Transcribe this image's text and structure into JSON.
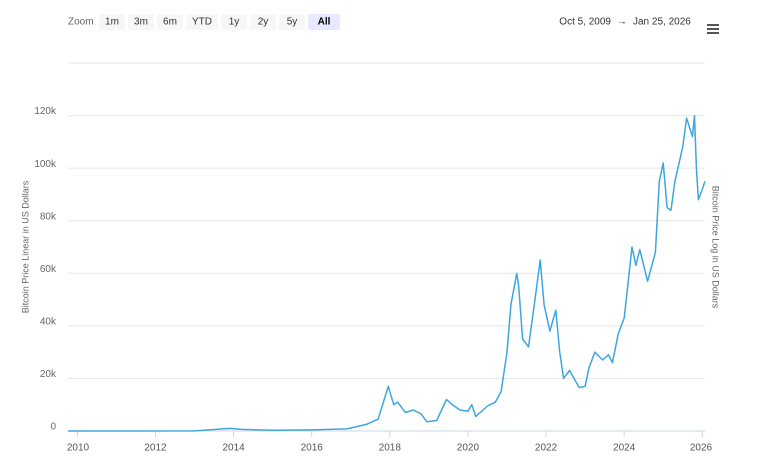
{
  "toolbar": {
    "zoom_label": "Zoom",
    "zoom_buttons": [
      "1m",
      "3m",
      "6m",
      "YTD",
      "1y",
      "2y",
      "5y",
      "All"
    ],
    "selected_zoom": 7,
    "range_from": "Oct 5, 2009",
    "range_arrow": "→",
    "range_to": "Jan 25, 2026"
  },
  "chart_data": {
    "type": "line",
    "y_label": "Bitcoin Price Linear in US Dollars",
    "y2_label": "Bitcoin Price Log in US Dollars",
    "x": [
      2009.76,
      2013.0,
      2013.9,
      2014.2,
      2015.0,
      2016.0,
      2016.9,
      2017.4,
      2017.7,
      2017.96,
      2018.1,
      2018.2,
      2018.4,
      2018.6,
      2018.8,
      2018.95,
      2019.2,
      2019.45,
      2019.6,
      2019.8,
      2020.0,
      2020.1,
      2020.2,
      2020.5,
      2020.7,
      2020.85,
      2021.0,
      2021.1,
      2021.25,
      2021.3,
      2021.4,
      2021.55,
      2021.7,
      2021.85,
      2021.95,
      2022.1,
      2022.25,
      2022.35,
      2022.45,
      2022.6,
      2022.85,
      2023.0,
      2023.1,
      2023.25,
      2023.45,
      2023.6,
      2023.7,
      2023.85,
      2024.0,
      2024.2,
      2024.3,
      2024.4,
      2024.6,
      2024.8,
      2024.9,
      2025.0,
      2025.1,
      2025.2,
      2025.3,
      2025.5,
      2025.6,
      2025.75,
      2025.8,
      2025.85,
      2025.9,
      2026.0,
      2026.07
    ],
    "series": [
      {
        "name": "Bitcoin Price",
        "color": "#3ea6df",
        "values": [
          0,
          20,
          1000,
          600,
          300,
          400,
          800,
          2500,
          4500,
          17000,
          10000,
          11000,
          7000,
          8000,
          6500,
          3500,
          4000,
          12000,
          10000,
          8000,
          7500,
          10000,
          5500,
          9500,
          11000,
          15000,
          30000,
          48000,
          60000,
          55000,
          35000,
          32000,
          48000,
          65000,
          48000,
          38000,
          46000,
          30000,
          20000,
          23000,
          16500,
          17000,
          24000,
          30000,
          27000,
          29000,
          26000,
          37000,
          43000,
          70000,
          63000,
          69000,
          57000,
          68000,
          95000,
          102000,
          85000,
          84000,
          95000,
          108000,
          119000,
          112000,
          120000,
          100000,
          88000,
          92000,
          95000
        ]
      }
    ],
    "xlim": [
      2009.76,
      2026.07
    ],
    "xticks": [
      2010,
      2012,
      2014,
      2016,
      2018,
      2020,
      2022,
      2024,
      2026
    ],
    "ylim": [
      0,
      140000
    ],
    "yticks": [
      0,
      {
        "value": 20000,
        "label": "20k"
      },
      {
        "value": 40000,
        "label": "40k"
      },
      {
        "value": 60000,
        "label": "60k"
      },
      {
        "value": 80000,
        "label": "80k"
      },
      {
        "value": 100000,
        "label": "100k"
      },
      {
        "value": 120000,
        "label": "120k"
      }
    ],
    "grid": true
  }
}
